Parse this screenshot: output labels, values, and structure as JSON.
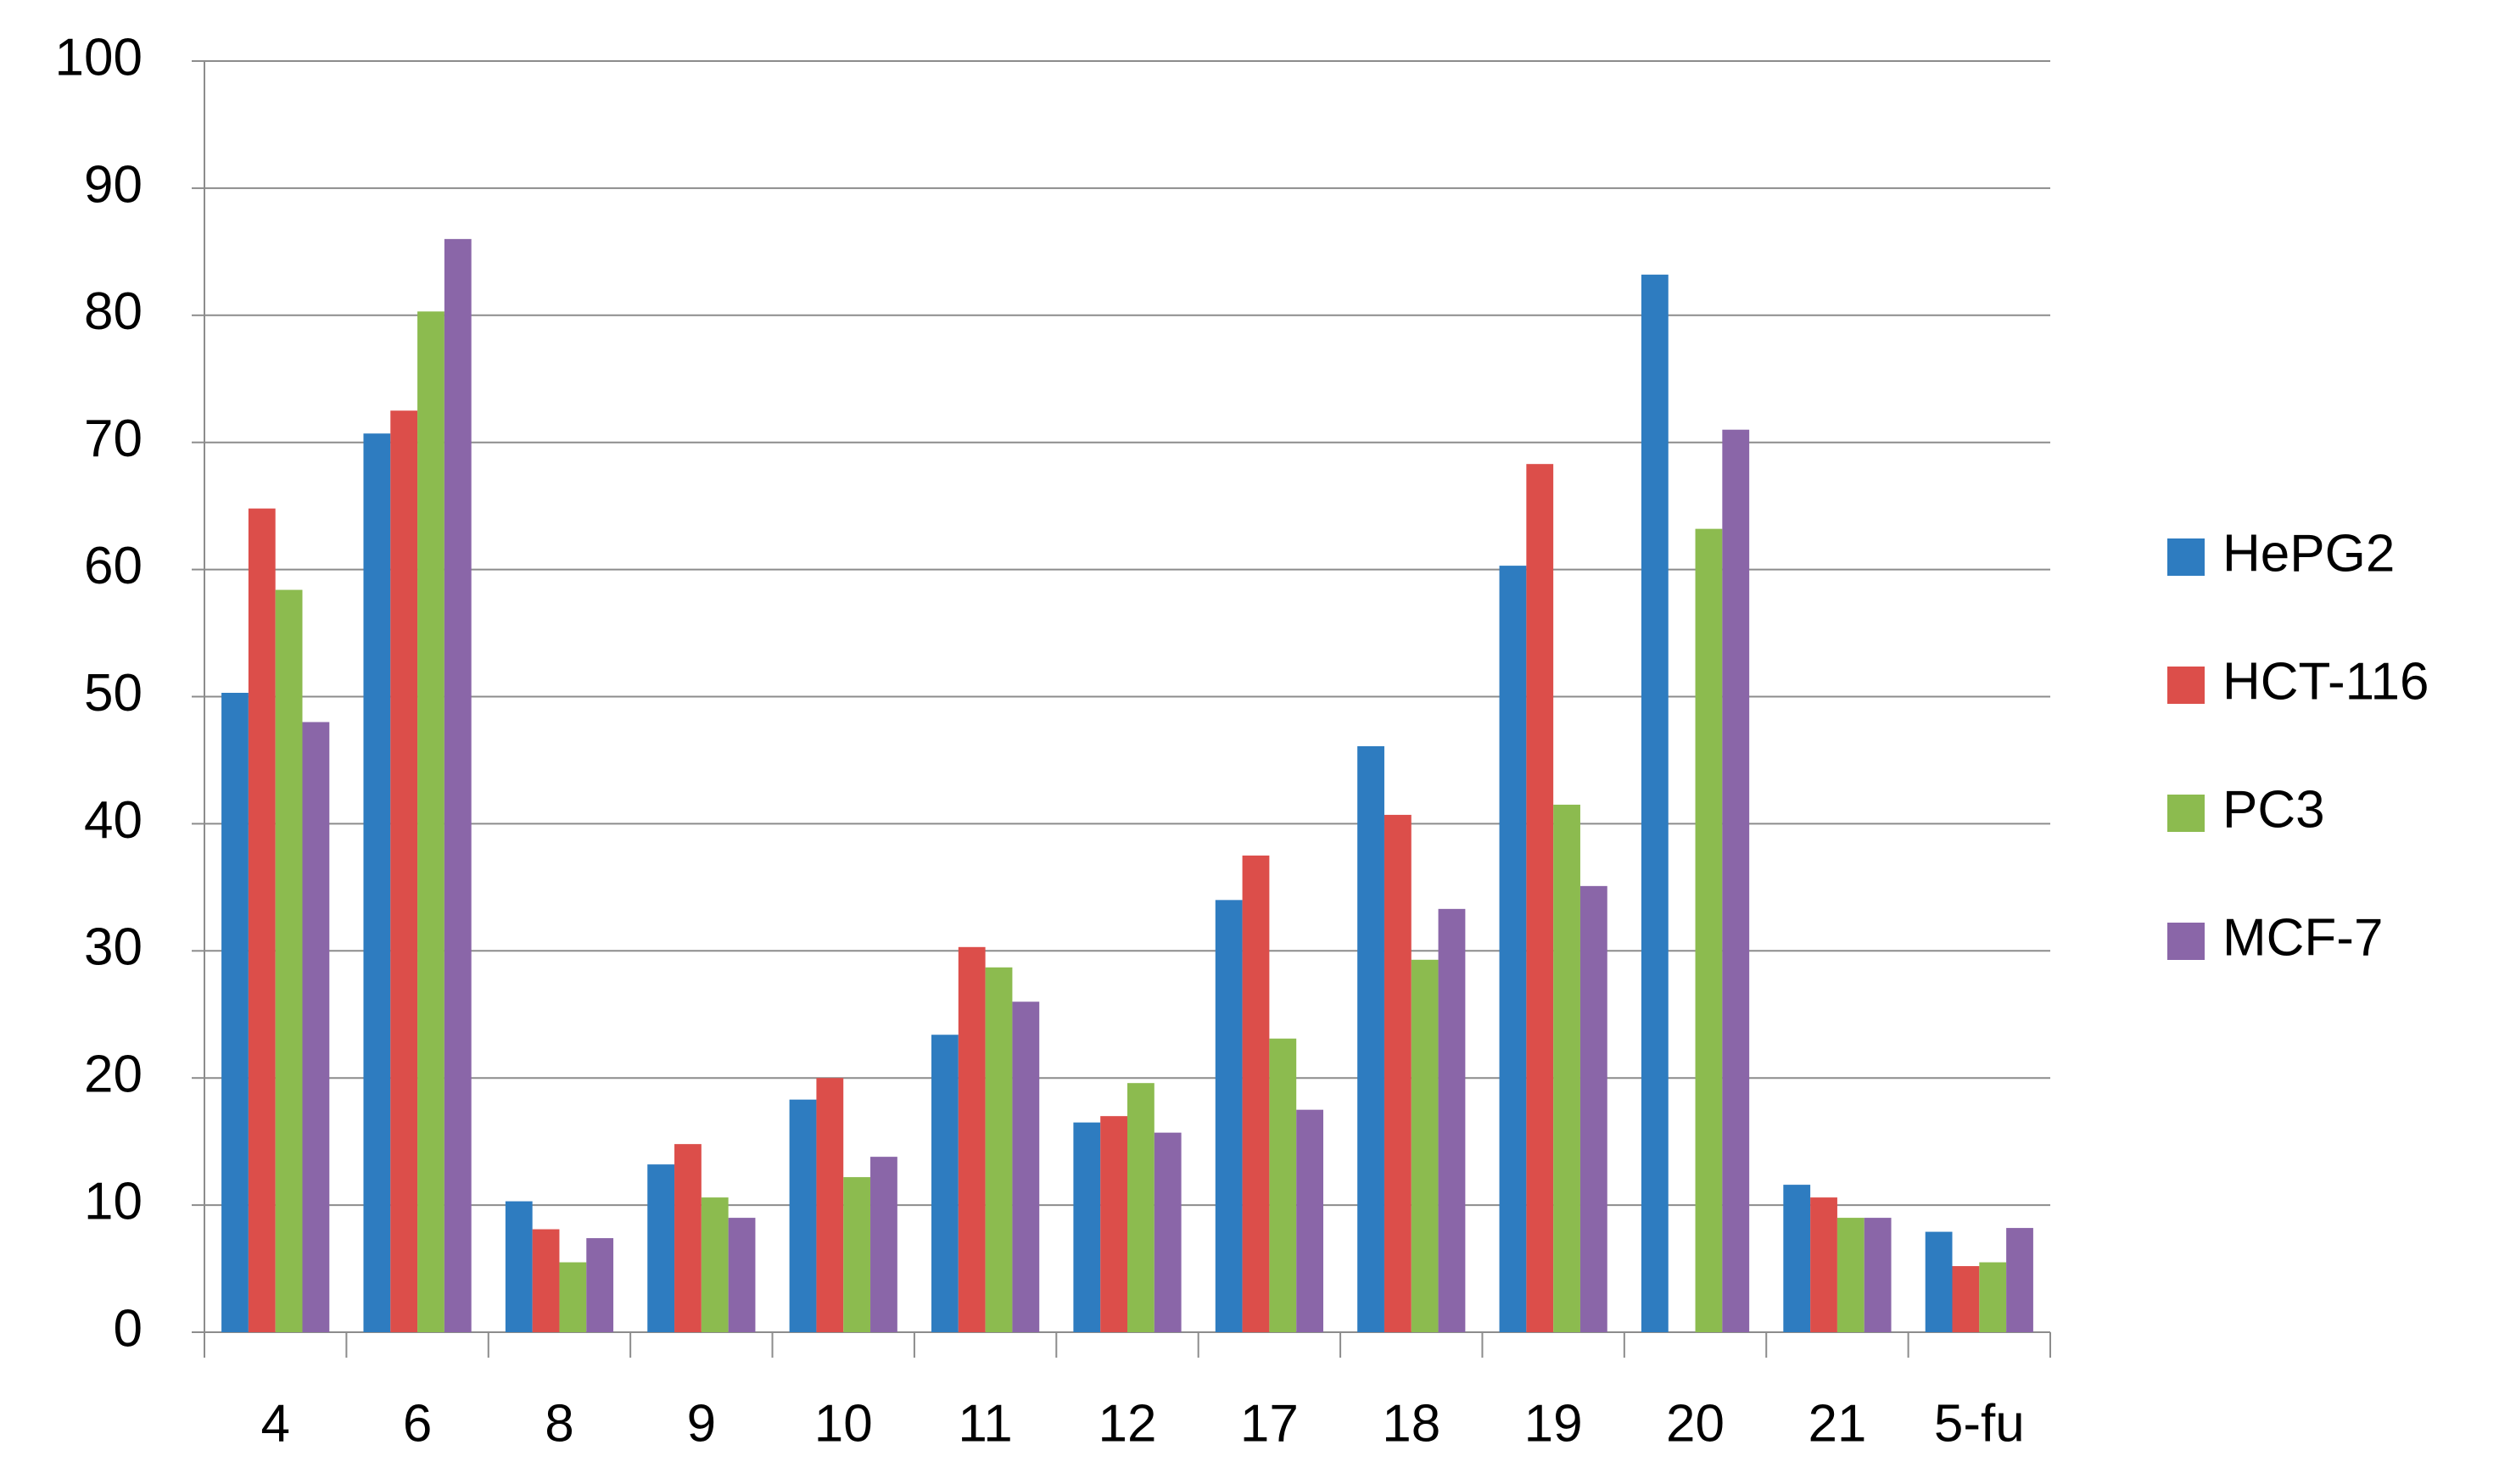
{
  "chart_data": {
    "type": "bar",
    "categories": [
      "4",
      "6",
      "8",
      "9",
      "10",
      "11",
      "12",
      "17",
      "18",
      "19",
      "20",
      "21",
      "5-fu"
    ],
    "series": [
      {
        "name": "HePG2",
        "color": "#2e7cc0",
        "values": [
          50.3,
          70.7,
          10.3,
          13.2,
          18.3,
          23.4,
          16.5,
          34,
          46.1,
          60.3,
          83.2,
          11.6,
          7.9
        ]
      },
      {
        "name": "HCT-116",
        "color": "#dc4e4a",
        "values": [
          64.8,
          72.5,
          8.1,
          14.8,
          20,
          30.3,
          17,
          37.5,
          40.7,
          68.3,
          null,
          10.6,
          5.2
        ]
      },
      {
        "name": "PC3",
        "color": "#8cbb4f",
        "values": [
          58.4,
          80.3,
          5.5,
          10.6,
          12.2,
          28.7,
          19.6,
          23.1,
          29.3,
          41.5,
          63.2,
          9,
          5.5
        ]
      },
      {
        "name": "MCF-7",
        "color": "#8a66a8",
        "values": [
          48,
          86,
          7.4,
          9,
          13.8,
          26,
          15.7,
          17.5,
          33.3,
          35.1,
          71,
          9,
          8.2
        ]
      }
    ],
    "ylim": [
      0,
      100
    ],
    "yticks": [
      0,
      10,
      20,
      30,
      40,
      50,
      60,
      70,
      80,
      90,
      100
    ],
    "grid": true,
    "legend": "right"
  }
}
